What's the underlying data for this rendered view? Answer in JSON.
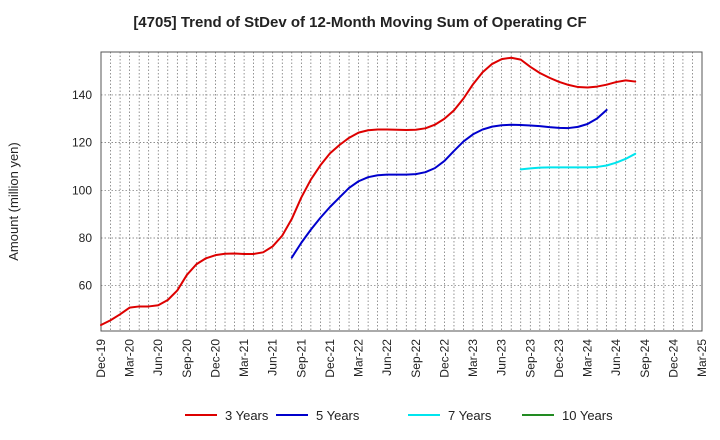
{
  "chart_data": {
    "type": "line",
    "title": "[4705]  Trend of StDev of 12-Month Moving Sum of Operating CF",
    "ylabel": "Amount (million yen)",
    "xlabel": "",
    "ylim": [
      41,
      158
    ],
    "yticks": [
      60,
      80,
      100,
      120,
      140
    ],
    "x_months": [
      "2019-12",
      "2020-01",
      "2020-02",
      "2020-03",
      "2020-04",
      "2020-05",
      "2020-06",
      "2020-07",
      "2020-08",
      "2020-09",
      "2020-10",
      "2020-11",
      "2020-12",
      "2021-01",
      "2021-02",
      "2021-03",
      "2021-04",
      "2021-05",
      "2021-06",
      "2021-07",
      "2021-08",
      "2021-09",
      "2021-10",
      "2021-11",
      "2021-12",
      "2022-01",
      "2022-02",
      "2022-03",
      "2022-04",
      "2022-05",
      "2022-06",
      "2022-07",
      "2022-08",
      "2022-09",
      "2022-10",
      "2022-11",
      "2022-12",
      "2023-01",
      "2023-02",
      "2023-03",
      "2023-04",
      "2023-05",
      "2023-06",
      "2023-07",
      "2023-08",
      "2023-09",
      "2023-10",
      "2023-11",
      "2023-12",
      "2024-01",
      "2024-02",
      "2024-03",
      "2024-04",
      "2024-05",
      "2024-06",
      "2024-07",
      "2024-08",
      "2024-09",
      "2024-10",
      "2024-11",
      "2024-12",
      "2025-01",
      "2025-02",
      "2025-03"
    ],
    "xticks": [
      "Dec-19",
      "Mar-20",
      "Jun-20",
      "Sep-20",
      "Dec-20",
      "Mar-21",
      "Jun-21",
      "Sep-21",
      "Dec-21",
      "Mar-22",
      "Jun-22",
      "Sep-22",
      "Dec-22",
      "Mar-23",
      "Jun-23",
      "Sep-23",
      "Dec-23",
      "Mar-24",
      "Jun-24",
      "Sep-24",
      "Dec-24",
      "Mar-25"
    ],
    "grid": true,
    "legend_position": "bottom",
    "series": [
      {
        "name": "3 Years",
        "color": "#dd0000",
        "start": "2019-12",
        "values": [
          43.5,
          45.5,
          48,
          50.8,
          51.3,
          51.3,
          51.8,
          54,
          58,
          64.5,
          69,
          71.5,
          72.8,
          73.4,
          73.5,
          73.3,
          73.3,
          74,
          76.5,
          81,
          88,
          97,
          104.5,
          110.5,
          115.5,
          119,
          122,
          124.2,
          125.2,
          125.5,
          125.5,
          125.4,
          125.3,
          125.4,
          126,
          127.5,
          130,
          133.5,
          138.5,
          144.5,
          149.5,
          153,
          155,
          155.6,
          154.8,
          151.8,
          149.2,
          147.2,
          145.5,
          144.2,
          143.3,
          143.1,
          143.5,
          144.3,
          145.4,
          146.1,
          145.6
        ]
      },
      {
        "name": "5 Years",
        "color": "#0000cc",
        "start": "2021-08",
        "values": [
          71.8,
          78,
          83.5,
          88.5,
          93,
          97,
          101,
          103.8,
          105.5,
          106.3,
          106.6,
          106.6,
          106.6,
          106.8,
          107.6,
          109.3,
          112.3,
          116.5,
          120.5,
          123.5,
          125.5,
          126.7,
          127.3,
          127.5,
          127.4,
          127.2,
          126.9,
          126.5,
          126.2,
          126.1,
          126.6,
          127.8,
          130.1,
          133.7
        ]
      },
      {
        "name": "7 Years",
        "color": "#00e5ee",
        "start": "2023-08",
        "values": [
          108.8,
          109.2,
          109.5,
          109.6,
          109.6,
          109.6,
          109.6,
          109.6,
          109.8,
          110.4,
          111.6,
          113.2,
          115.3
        ]
      },
      {
        "name": "10 Years",
        "color": "#228b22",
        "start": "2024-09",
        "values": []
      }
    ]
  }
}
